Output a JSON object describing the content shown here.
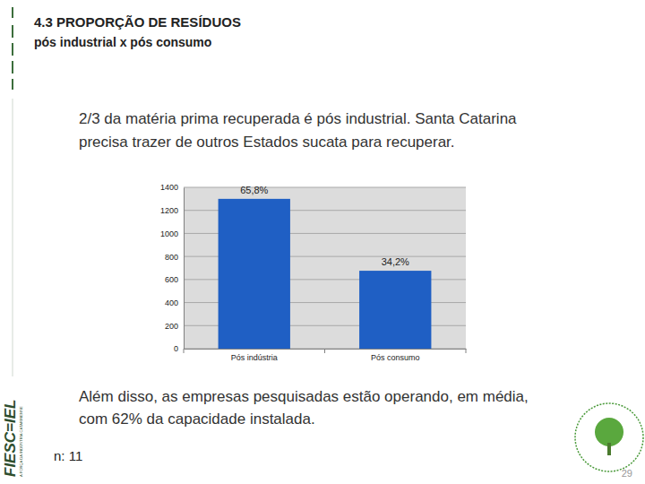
{
  "slide": {
    "heading": "4.3 PROPORÇÃO DE RESÍDUOS",
    "subheading": "pós industrial x pós consumo",
    "intro": [
      "2/3 da matéria prima recuperada é pós industrial. Santa Catarina",
      "precisa trazer de outros Estados sucata para recuperar."
    ],
    "conclusion": [
      "Além disso, as empresas pesquisadas estão operando, em média,",
      "com 62% da capacidade instalada."
    ],
    "sample": "n: 11",
    "page": "29",
    "brand": "FIESC=IEL",
    "brand_tagline": "A FORÇA DA INDÚSTRIA CATARINENSE"
  },
  "chart_data": {
    "type": "bar",
    "categories": [
      "Pós indústria",
      "Pós consumo"
    ],
    "values": [
      1300,
      676
    ],
    "color": "#1f5fc4",
    "ylim": [
      0,
      1400
    ],
    "yticks": [
      0,
      200,
      400,
      600,
      800,
      1000,
      1200,
      1400
    ],
    "grid": true,
    "annotations": [
      "65,8%",
      "34,2%"
    ]
  }
}
